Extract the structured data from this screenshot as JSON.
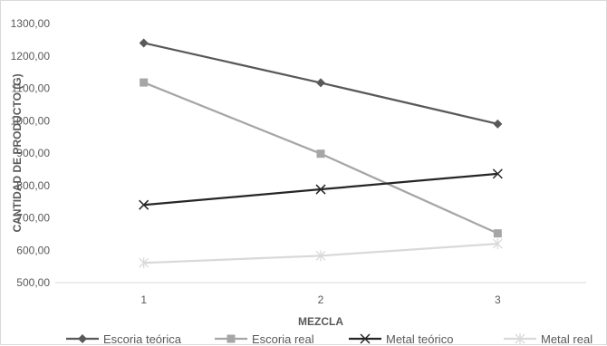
{
  "chart_data": {
    "type": "line",
    "title": "",
    "xlabel": "MEZCLA",
    "ylabel": "CANTIDAD DE PRODUCTO (G)",
    "categories": [
      "1",
      "2",
      "3"
    ],
    "ylim": [
      500,
      1300
    ],
    "yticks": [
      "500,00",
      "600,00",
      "700,00",
      "800,00",
      "900,00",
      "1000,00",
      "1100,00",
      "1200,00",
      "1300,00"
    ],
    "grid": false,
    "legend_position": "bottom",
    "series": [
      {
        "name": "Escoria teórica",
        "values": [
          1240,
          1117,
          990
        ],
        "color": "#595959",
        "marker": "diamond"
      },
      {
        "name": "Escoria real",
        "values": [
          1118,
          898,
          652
        ],
        "color": "#a6a6a6",
        "marker": "square"
      },
      {
        "name": "Metal teórico",
        "values": [
          740,
          788,
          836
        ],
        "color": "#262626",
        "marker": "x"
      },
      {
        "name": "Metal real",
        "values": [
          561,
          583,
          620
        ],
        "color": "#d9d9d9",
        "marker": "star"
      }
    ]
  }
}
